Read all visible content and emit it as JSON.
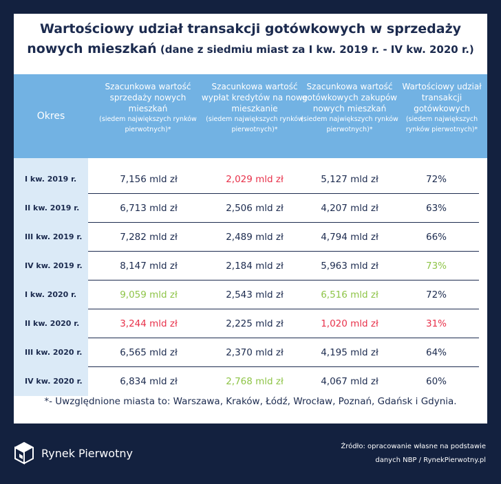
{
  "title": {
    "line1": "Wartościowy udział  transakcji gotówkowych w sprzedaży",
    "line2_main": "nowych mieszkań",
    "line2_sub": " (dane z siedmiu miast za I kw. 2019 r. - IV kw. 2020 r.)"
  },
  "table": {
    "columns": [
      {
        "main": "Okres",
        "small": ""
      },
      {
        "main": "Szacunkowa wartość sprzedaży nowych mieszkań",
        "small": "(siedem największych rynków pierwotnych)*"
      },
      {
        "main": "Szacunkowa wartość wypłat kredytów na nowe mieszkanie",
        "small": "(siedem największych rynków pierwotnych)*"
      },
      {
        "main": "Szacunkowa wartość gotówkowych zakupów nowych mieszkań",
        "small": "(siedem największych rynków pierwotnych)*"
      },
      {
        "main": "Wartościowy udział transakcji gotówkowych",
        "small": "(siedem największych rynków pierwotnych)*"
      }
    ],
    "rows": [
      {
        "period": "I kw. 2019 r.",
        "sales": "7,156 mld zł",
        "loans": "2,029 mld zł",
        "cash": "5,127 mld zł",
        "share": "72%"
      },
      {
        "period": "II kw. 2019 r.",
        "sales": "6,713 mld zł",
        "loans": "2,506 mld zł",
        "cash": "4,207 mld zł",
        "share": "63%"
      },
      {
        "period": "III kw. 2019 r.",
        "sales": "7,282 mld zł",
        "loans": "2,489 mld zł",
        "cash": "4,794 mld zł",
        "share": "66%"
      },
      {
        "period": "IV kw. 2019 r.",
        "sales": "8,147 mld zł",
        "loans": "2,184 mld zł",
        "cash": "5,963 mld zł",
        "share": "73%"
      },
      {
        "period": "I kw. 2020 r.",
        "sales": "9,059 mld zł",
        "loans": "2,543 mld zł",
        "cash": "6,516 mld zł",
        "share": "72%"
      },
      {
        "period": "II kw. 2020 r.",
        "sales": "3,244 mld zł",
        "loans": "2,225 mld zł",
        "cash": "1,020 mld zł",
        "share": "31%"
      },
      {
        "period": "III kw. 2020 r.",
        "sales": "6,565 mld zł",
        "loans": "2,370 mld zł",
        "cash": "4,195 mld zł",
        "share": "64%"
      },
      {
        "period": "IV kw. 2020 r.",
        "sales": "6,834 mld zł",
        "loans": "2,768 mld zł",
        "cash": "4,067 mld zł",
        "share": "60%"
      }
    ],
    "highlight_colors": {
      "high": "#8ec447",
      "low": "#e8314a"
    }
  },
  "footnote": "*- Uwzględnione miasta to: Warszawa, Kraków, Łódź, Wrocław, Poznań, Gdańsk i Gdynia.",
  "brand": {
    "name": "Rynek Pierwotny",
    "icon": "cube-logo-icon"
  },
  "source": {
    "line1": "Źródło: opracowanie  własne na podstawie",
    "line2": "danych NBP / RynekPierwotny.pl"
  }
}
